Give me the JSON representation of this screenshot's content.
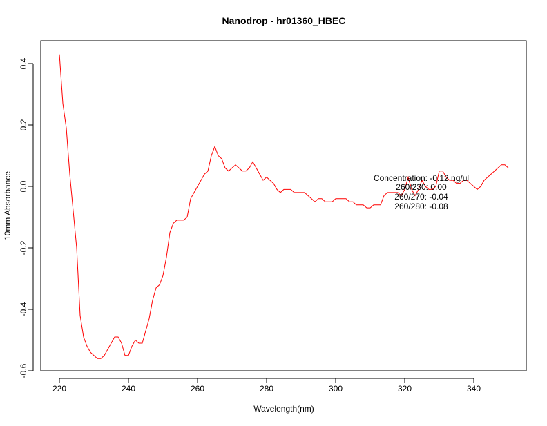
{
  "chart_data": {
    "type": "line",
    "title": "Nanodrop - hr01360_HBEC",
    "xlabel": "Wavelength(nm)",
    "ylabel": "10mm Absorbance",
    "xlim": [
      220,
      350
    ],
    "ylim": [
      -0.6,
      0.45
    ],
    "xticks": [
      220,
      240,
      260,
      280,
      300,
      320,
      340
    ],
    "yticks": [
      -0.6,
      -0.4,
      -0.2,
      0.0,
      0.2,
      0.4
    ],
    "xtick_labels": [
      "220",
      "240",
      "260",
      "280",
      "300",
      "320",
      "340"
    ],
    "ytick_labels": [
      "-0.6",
      "-0.4",
      "-0.2",
      "0.0",
      "0.2",
      "0.4"
    ],
    "grid": false,
    "line_color": "#ff0000",
    "annotations": [
      "Concentration: -0.12 ng/ul",
      "260/230: 0.00",
      "260/270: -0.04",
      "260/280: -0.08"
    ],
    "series": [
      {
        "x": [
          220,
          221,
          222,
          223,
          224,
          225,
          226,
          227,
          228,
          229,
          230,
          231,
          232,
          233,
          234,
          235,
          236,
          237,
          238,
          239,
          240,
          241,
          242,
          243,
          244,
          245,
          246,
          247,
          248,
          249,
          250,
          251,
          252,
          253,
          254,
          255,
          256,
          257,
          258,
          259,
          260,
          261,
          262,
          263,
          264,
          265,
          266,
          267,
          268,
          269,
          270,
          271,
          272,
          273,
          274,
          275,
          276,
          277,
          278,
          279,
          280,
          281,
          282,
          283,
          284,
          285,
          286,
          287,
          288,
          289,
          290,
          291,
          292,
          293,
          294,
          295,
          296,
          297,
          298,
          299,
          300,
          301,
          302,
          303,
          304,
          305,
          306,
          307,
          308,
          309,
          310,
          311,
          312,
          313,
          314,
          315,
          316,
          317,
          318,
          319,
          320,
          321,
          322,
          323,
          324,
          325,
          326,
          327,
          328,
          329,
          330,
          331,
          332,
          333,
          334,
          335,
          336,
          337,
          338,
          339,
          340,
          341,
          342,
          343,
          344,
          345,
          346,
          347,
          348,
          349,
          350
        ],
        "y": [
          0.43,
          0.27,
          0.19,
          0.04,
          -0.08,
          -0.2,
          -0.42,
          -0.49,
          -0.52,
          -0.54,
          -0.55,
          -0.56,
          -0.56,
          -0.55,
          -0.53,
          -0.51,
          -0.49,
          -0.49,
          -0.51,
          -0.55,
          -0.55,
          -0.52,
          -0.5,
          -0.51,
          -0.51,
          -0.47,
          -0.43,
          -0.37,
          -0.33,
          -0.32,
          -0.29,
          -0.23,
          -0.15,
          -0.12,
          -0.11,
          -0.11,
          -0.11,
          -0.1,
          -0.04,
          -0.02,
          0.0,
          0.02,
          0.04,
          0.05,
          0.1,
          0.13,
          0.1,
          0.09,
          0.06,
          0.05,
          0.06,
          0.07,
          0.06,
          0.05,
          0.05,
          0.06,
          0.08,
          0.06,
          0.04,
          0.02,
          0.03,
          0.02,
          0.01,
          -0.01,
          -0.02,
          -0.01,
          -0.01,
          -0.01,
          -0.02,
          -0.02,
          -0.02,
          -0.02,
          -0.03,
          -0.04,
          -0.05,
          -0.04,
          -0.04,
          -0.05,
          -0.05,
          -0.05,
          -0.04,
          -0.04,
          -0.04,
          -0.04,
          -0.05,
          -0.05,
          -0.06,
          -0.06,
          -0.06,
          -0.07,
          -0.07,
          -0.06,
          -0.06,
          -0.06,
          -0.03,
          -0.02,
          -0.02,
          -0.02,
          -0.02,
          -0.03,
          -0.01,
          0.03,
          -0.01,
          -0.03,
          -0.01,
          0.02,
          0.0,
          -0.01,
          -0.01,
          0.0,
          0.05,
          0.05,
          0.03,
          0.02,
          0.02,
          0.01,
          0.01,
          0.02,
          0.02,
          0.01,
          0.0,
          -0.01,
          0.0,
          0.02,
          0.03,
          0.04,
          0.05,
          0.06,
          0.07,
          0.07,
          0.06
        ]
      }
    ]
  }
}
